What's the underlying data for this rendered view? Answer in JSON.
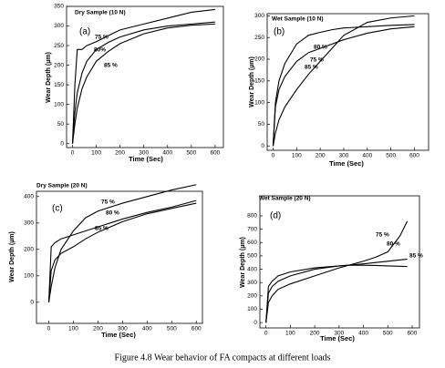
{
  "chart_data": [
    {
      "type": "line",
      "title": "Dry Sample (10 N)",
      "annotation": "(a)",
      "xlabel": "Time (Sec)",
      "ylabel": "Wear Depth (µm)",
      "x": [
        0,
        10,
        20,
        40,
        60,
        100,
        150,
        200,
        300,
        400,
        500,
        600
      ],
      "series": [
        {
          "name": "75 %",
          "color": "#000000",
          "values": [
            0,
            150,
            240,
            240,
            250,
            260,
            275,
            290,
            305,
            320,
            335,
            342
          ]
        },
        {
          "name": "80%",
          "color": "#000000",
          "values": [
            0,
            80,
            130,
            180,
            210,
            240,
            258,
            272,
            290,
            300,
            305,
            310
          ]
        },
        {
          "name": "85 %",
          "color": "#000000",
          "values": [
            0,
            50,
            90,
            140,
            170,
            210,
            235,
            255,
            280,
            295,
            302,
            305
          ]
        }
      ],
      "xlim": [
        -25,
        635
      ],
      "ylim": [
        -10,
        350
      ],
      "xticks": [
        0,
        100,
        200,
        300,
        400,
        500,
        600
      ],
      "yticks": [
        0,
        50,
        100,
        150,
        200,
        250,
        300,
        350
      ]
    },
    {
      "type": "line",
      "title": "Wet Sample (10 N)",
      "annotation": "(b)",
      "xlabel": "Time (Sec)",
      "ylabel": "Wear Depth (µm)",
      "x": [
        0,
        10,
        25,
        50,
        100,
        150,
        200,
        250,
        300,
        400,
        500,
        600
      ],
      "series": [
        {
          "name": "75 %",
          "color": "#000000",
          "values": [
            0,
            100,
            150,
            190,
            235,
            255,
            262,
            268,
            272,
            275,
            278,
            280
          ]
        },
        {
          "name": "80 %",
          "color": "#000000",
          "values": [
            0,
            90,
            130,
            160,
            195,
            215,
            225,
            235,
            245,
            260,
            270,
            275
          ]
        },
        {
          "name": "85 %",
          "color": "#000000",
          "values": [
            0,
            30,
            60,
            90,
            130,
            165,
            195,
            225,
            255,
            285,
            295,
            300
          ]
        }
      ],
      "xlim": [
        -25,
        660
      ],
      "ylim": [
        -10,
        305
      ],
      "xticks": [
        0,
        100,
        200,
        300,
        400,
        500,
        600
      ],
      "yticks": [
        0,
        50,
        100,
        150,
        200,
        250,
        300
      ]
    },
    {
      "type": "line",
      "title": "Dry Sample (20 N)",
      "annotation": "(c)",
      "xlabel": "Time (Sec)",
      "ylabel": "Wear Depth (µm)",
      "x": [
        0,
        10,
        25,
        50,
        100,
        150,
        200,
        300,
        400,
        500,
        600
      ],
      "series": [
        {
          "name": "75 %",
          "color": "#000000",
          "values": [
            0,
            60,
            130,
            200,
            270,
            320,
            345,
            375,
            400,
            425,
            445
          ]
        },
        {
          "name": "80 %",
          "color": "#000000",
          "values": [
            0,
            210,
            225,
            240,
            255,
            270,
            285,
            315,
            340,
            360,
            385
          ]
        },
        {
          "name": "85 %",
          "color": "#000000",
          "values": [
            0,
            120,
            160,
            185,
            210,
            240,
            265,
            305,
            335,
            355,
            375
          ]
        }
      ],
      "xlim": [
        -50,
        625
      ],
      "ylim": [
        -80,
        420
      ],
      "xticks": [
        0,
        100,
        200,
        300,
        400,
        500,
        600
      ],
      "yticks": [
        0,
        100,
        200,
        300,
        400
      ]
    },
    {
      "type": "line",
      "title": "Wet Sample (20 N)",
      "annotation": "(d)",
      "xlabel": "Time (Sec)",
      "ylabel": "Wear Depth (µm)",
      "x": [
        0,
        10,
        25,
        50,
        100,
        200,
        300,
        340,
        400,
        450,
        500,
        550,
        580
      ],
      "series": [
        {
          "name": "75 %",
          "color": "#000000",
          "values": [
            0,
            150,
            200,
            250,
            290,
            350,
            410,
            430,
            460,
            490,
            530,
            650,
            760
          ]
        },
        {
          "name": "80 %",
          "color": "#000000",
          "values": [
            0,
            220,
            270,
            310,
            350,
            400,
            425,
            430,
            440,
            450,
            460,
            470,
            475
          ]
        },
        {
          "name": "85 %",
          "color": "#000000",
          "values": [
            0,
            270,
            310,
            350,
            380,
            410,
            425,
            430,
            430,
            428,
            425,
            422,
            420
          ]
        }
      ],
      "xlim": [
        -25,
        630
      ],
      "ylim": [
        -40,
        950
      ],
      "xticks": [
        0,
        100,
        200,
        300,
        400,
        500,
        600
      ],
      "yticks": [
        0,
        100,
        200,
        300,
        400,
        500,
        600,
        700,
        800
      ]
    }
  ],
  "caption": "Figure 4.8 Wear behavior of FA compacts at different loads"
}
